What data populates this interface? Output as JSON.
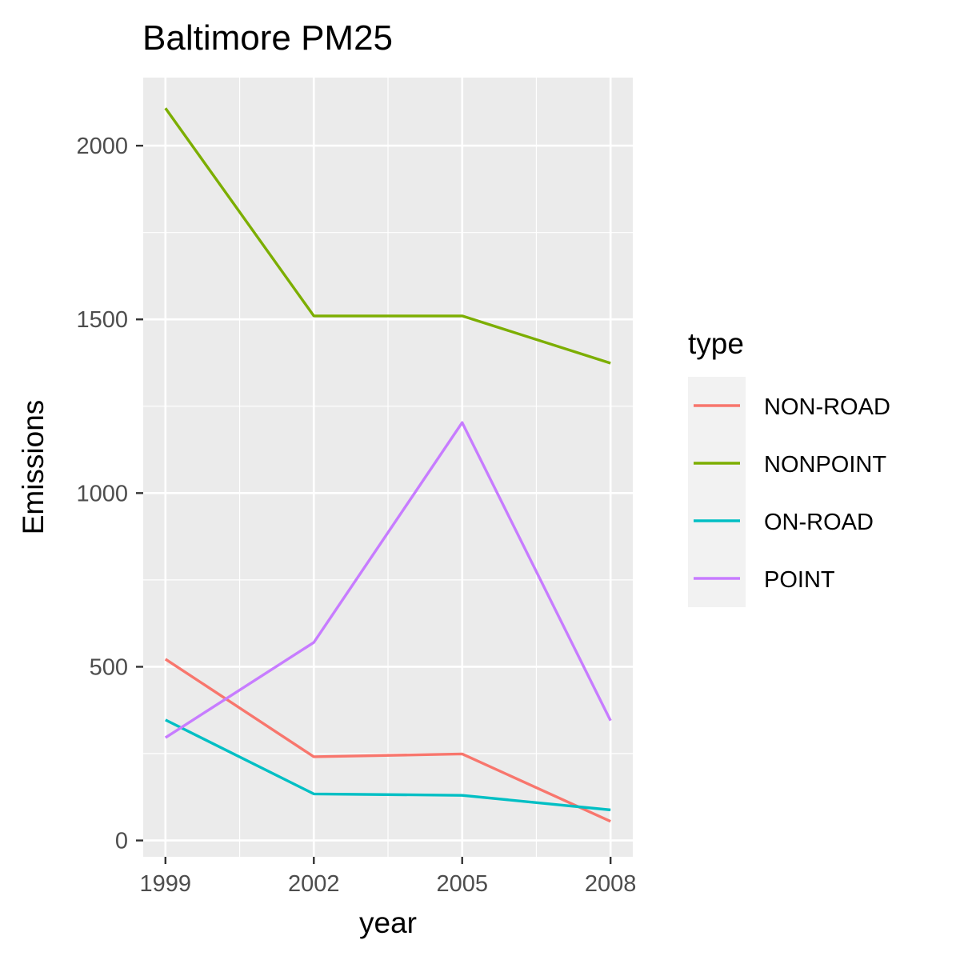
{
  "chart_data": {
    "type": "line",
    "title": "Baltimore PM25",
    "xlabel": "year",
    "ylabel": "Emissions",
    "x": [
      1999,
      2002,
      2005,
      2008
    ],
    "x_ticks": [
      "1999",
      "2002",
      "2005",
      "2008"
    ],
    "y_ticks": [
      "0",
      "500",
      "1000",
      "1500",
      "2000"
    ],
    "xlim": [
      1998.55,
      2008.45
    ],
    "ylim": [
      -47,
      2196
    ],
    "grid": true,
    "legend": {
      "title": "type",
      "placement": "right"
    },
    "series": [
      {
        "name": "NON-ROAD",
        "color": "#F8766D",
        "values": [
          522,
          241,
          249,
          55
        ]
      },
      {
        "name": "NONPOINT",
        "color": "#7CAE00",
        "values": [
          2108,
          1510,
          1510,
          1374
        ]
      },
      {
        "name": "ON-ROAD",
        "color": "#00BFC4",
        "values": [
          347,
          134,
          130,
          88
        ]
      },
      {
        "name": "POINT",
        "color": "#C77CFF",
        "values": [
          296,
          570,
          1203,
          345
        ]
      }
    ]
  }
}
